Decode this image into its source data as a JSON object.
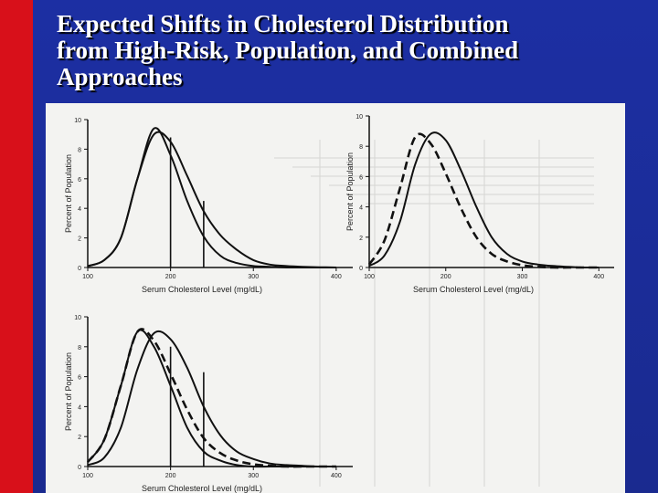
{
  "slide": {
    "title_lines": [
      "Expected Shifts in Cholesterol Distribution",
      "from High-Risk, Population, and Combined",
      "Approaches"
    ],
    "colors": {
      "background": "#1a2a8f",
      "accent_bar": "#d8101a",
      "title": "#ffffff",
      "figure_bg": "#f3f3f1"
    }
  },
  "chart_data": [
    {
      "type": "line",
      "panel": "top-left",
      "xlabel": "Serum Cholesterol Level (mg/dL)",
      "ylabel": "Percent of Population",
      "xlim": [
        100,
        420
      ],
      "ylim": [
        0,
        10
      ],
      "x_ticks": [
        "100",
        "200",
        "300",
        "400"
      ],
      "y_ticks": [
        "0",
        "2",
        "4",
        "6",
        "8",
        "10"
      ],
      "series": [
        {
          "style": "solid",
          "x": [
            100,
            120,
            140,
            160,
            180,
            200,
            220,
            240,
            260,
            280,
            300,
            320,
            340,
            360,
            380,
            400
          ],
          "y": [
            0.1,
            0.5,
            2.0,
            6.0,
            9.0,
            8.5,
            6.2,
            3.8,
            2.2,
            1.2,
            0.5,
            0.2,
            0.1,
            0.05,
            0.02,
            0
          ]
        },
        {
          "style": "solid",
          "x": [
            100,
            120,
            140,
            160,
            180,
            200,
            220,
            240,
            260,
            280,
            300,
            320,
            340,
            360,
            380,
            400
          ],
          "y": [
            0.1,
            0.5,
            2.0,
            6.0,
            9.4,
            7.6,
            4.5,
            2.1,
            0.8,
            0.3,
            0.1,
            0.05,
            0,
            0,
            0,
            0
          ]
        }
      ],
      "vertical_lines": [
        {
          "x": 200,
          "y": 8.8
        },
        {
          "x": 240,
          "y": 4.5
        }
      ]
    },
    {
      "type": "line",
      "panel": "top-right",
      "xlabel": "Serum Cholesterol Level (mg/dL)",
      "ylabel": "Percent of Population",
      "xlim": [
        100,
        420
      ],
      "ylim": [
        0,
        10
      ],
      "x_ticks": [
        "100",
        "200",
        "300",
        "400"
      ],
      "y_ticks": [
        "0",
        "2",
        "4",
        "6",
        "8",
        "10"
      ],
      "series": [
        {
          "style": "solid",
          "x": [
            100,
            120,
            140,
            160,
            180,
            200,
            220,
            240,
            260,
            280,
            300,
            320,
            340,
            360,
            380,
            400
          ],
          "y": [
            0.1,
            0.8,
            3.0,
            6.8,
            8.8,
            8.4,
            6.4,
            4.0,
            2.0,
            0.9,
            0.4,
            0.2,
            0.1,
            0.05,
            0,
            0
          ]
        },
        {
          "style": "dashed",
          "x": [
            100,
            120,
            140,
            160,
            180,
            200,
            220,
            240,
            260,
            280,
            300,
            320,
            340,
            360,
            380,
            400
          ],
          "y": [
            0.2,
            1.8,
            5.2,
            8.6,
            8.2,
            6.2,
            3.9,
            2.0,
            0.9,
            0.4,
            0.15,
            0.05,
            0,
            0,
            0,
            0
          ]
        }
      ],
      "vertical_lines": []
    },
    {
      "type": "line",
      "panel": "bottom-left",
      "xlabel": "Serum Cholesterol Level (mg/dL)",
      "ylabel": "Percent of Population",
      "xlim": [
        100,
        420
      ],
      "ylim": [
        0,
        10
      ],
      "x_ticks": [
        "100",
        "200",
        "300",
        "400"
      ],
      "y_ticks": [
        "0",
        "2",
        "4",
        "6",
        "8",
        "10"
      ],
      "series": [
        {
          "style": "solid",
          "x": [
            100,
            120,
            140,
            160,
            180,
            200,
            220,
            240,
            260,
            280,
            300,
            320,
            340,
            360,
            380,
            400
          ],
          "y": [
            0.1,
            0.6,
            2.6,
            6.5,
            8.9,
            8.5,
            6.6,
            4.0,
            2.1,
            1.0,
            0.5,
            0.2,
            0.1,
            0.05,
            0,
            0
          ]
        },
        {
          "style": "dashed",
          "x": [
            100,
            120,
            140,
            160,
            180,
            200,
            220,
            240,
            260,
            280,
            300,
            320,
            340,
            360,
            380,
            400
          ],
          "y": [
            0.3,
            1.8,
            5.4,
            9.0,
            8.4,
            6.2,
            3.8,
            1.9,
            0.9,
            0.4,
            0.15,
            0.05,
            0,
            0,
            0,
            0
          ]
        },
        {
          "style": "solid",
          "x": [
            100,
            120,
            140,
            160,
            180,
            200,
            220,
            240,
            260,
            280,
            300,
            320,
            340,
            360,
            380,
            400
          ],
          "y": [
            0.3,
            1.8,
            5.4,
            9.0,
            8.0,
            5.4,
            2.6,
            1.0,
            0.4,
            0.1,
            0,
            0,
            0,
            0,
            0,
            0
          ]
        }
      ],
      "vertical_lines": [
        {
          "x": 200,
          "y": 8.0
        },
        {
          "x": 240,
          "y": 6.3
        }
      ]
    }
  ]
}
